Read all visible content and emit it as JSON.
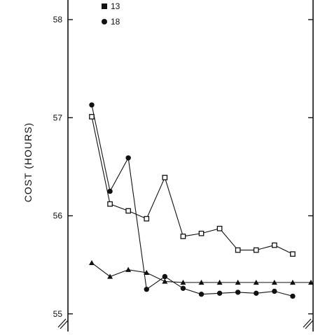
{
  "chart_data": {
    "type": "line",
    "ylabel": "COST (HOURS)",
    "yticks": [
      55,
      56,
      57,
      58
    ],
    "ylim": [
      54.82,
      58.2
    ],
    "x_count": 13,
    "grid": false,
    "legend_placement": "top-left",
    "series": [
      {
        "name": "13",
        "marker": "square",
        "values": [
          57.01,
          56.12,
          56.05,
          55.97,
          56.39,
          55.79,
          55.82,
          55.87,
          55.65,
          55.65,
          55.7,
          55.61
        ]
      },
      {
        "name": "18",
        "marker": "circle",
        "values": [
          57.13,
          56.25,
          56.59,
          55.25,
          55.38,
          55.26,
          55.2,
          55.21,
          55.22,
          55.21,
          55.23,
          55.18
        ]
      },
      {
        "name": "",
        "marker": "triangle",
        "values": [
          55.52,
          55.38,
          55.45,
          55.42,
          55.33,
          55.32,
          55.32,
          55.32,
          55.32,
          55.32,
          55.32,
          55.32,
          55.32
        ]
      }
    ]
  }
}
